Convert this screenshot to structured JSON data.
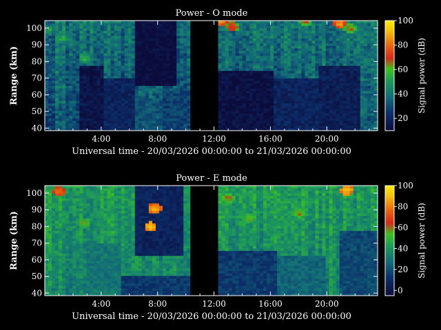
{
  "chart_data": [
    {
      "type": "heatmap",
      "title": "Power - O mode",
      "xlabel": "Universal time - 20/03/2026 00:00:00 to 21/03/2026 00:00:00",
      "ylabel": "Range (km)",
      "x_ticks": [
        "4:00",
        "8:00",
        "12:00",
        "16:00",
        "20:00"
      ],
      "x_tick_hours": [
        4,
        8,
        12,
        16,
        20
      ],
      "y_ticks": [
        "40",
        "50",
        "60",
        "70",
        "80",
        "90",
        "100"
      ],
      "y_tick_values": [
        40,
        50,
        60,
        70,
        80,
        90,
        100
      ],
      "xlim_hours": [
        0,
        23.6
      ],
      "ylim_km": [
        38.5,
        104.5
      ],
      "colorbar": {
        "label": "Signal power (dB)",
        "ticks": [
          "20",
          "40",
          "60",
          "80",
          "100"
        ],
        "tick_values": [
          20,
          40,
          60,
          80,
          100
        ],
        "range": [
          10,
          100
        ]
      },
      "data_gap_hours": [
        10.3,
        12.3
      ],
      "base_power_db": 35,
      "weak_blocks": [
        {
          "t0": 2.4,
          "t1": 4.3,
          "r0": 38.5,
          "r1": 77,
          "db": 14
        },
        {
          "t0": 4.3,
          "t1": 6.3,
          "r0": 38.5,
          "r1": 70,
          "db": 20
        },
        {
          "t0": 6.3,
          "t1": 8.3,
          "r0": 38.5,
          "r1": 58,
          "db": 32
        },
        {
          "t0": 6.3,
          "t1": 9.3,
          "r0": 66,
          "r1": 104.5,
          "db": 10
        },
        {
          "t0": 8.3,
          "t1": 10.3,
          "r0": 38.5,
          "r1": 62,
          "db": 28
        },
        {
          "t0": 12.3,
          "t1": 16.2,
          "r0": 38.5,
          "r1": 75,
          "db": 12
        },
        {
          "t0": 16.2,
          "t1": 19.5,
          "r0": 38.5,
          "r1": 70,
          "db": 20
        },
        {
          "t0": 19.5,
          "t1": 22.4,
          "r0": 38.5,
          "r1": 78,
          "db": 18
        }
      ],
      "strong_spots": [
        {
          "t": 0.3,
          "r": 99,
          "db": 55
        },
        {
          "t": 1.3,
          "r": 94,
          "db": 58
        },
        {
          "t": 2.8,
          "r": 82,
          "db": 60
        },
        {
          "t": 12.5,
          "r": 104,
          "db": 85
        },
        {
          "t": 13.3,
          "r": 101,
          "db": 78
        },
        {
          "t": 18.5,
          "r": 104,
          "db": 70
        },
        {
          "t": 20.9,
          "r": 103,
          "db": 90
        },
        {
          "t": 21.6,
          "r": 100,
          "db": 72
        }
      ]
    },
    {
      "type": "heatmap",
      "title": "Power - E mode",
      "xlabel": "Universal time - 20/03/2026 00:00:00 to 21/03/2026 00:00:00",
      "ylabel": "Range (km)",
      "x_ticks": [
        "4:00",
        "8:00",
        "12:00",
        "16:00",
        "20:00"
      ],
      "x_tick_hours": [
        4,
        8,
        12,
        16,
        20
      ],
      "y_ticks": [
        "40",
        "50",
        "60",
        "70",
        "80",
        "90",
        "100"
      ],
      "y_tick_values": [
        40,
        50,
        60,
        70,
        80,
        90,
        100
      ],
      "xlim_hours": [
        0,
        23.6
      ],
      "ylim_km": [
        38.5,
        104.5
      ],
      "colorbar": {
        "label": "Signal power (dB)",
        "ticks": [
          "0",
          "20",
          "40",
          "60",
          "80",
          "100"
        ],
        "tick_values": [
          0,
          20,
          40,
          60,
          80,
          100
        ],
        "range": [
          -5,
          100
        ]
      },
      "data_gap_hours": [
        10.3,
        12.3
      ],
      "base_power_db": 38,
      "weak_blocks": [
        {
          "t0": 3.0,
          "t1": 5.3,
          "r0": 38.5,
          "r1": 70,
          "db": 30
        },
        {
          "t0": 5.3,
          "t1": 10.3,
          "r0": 38.5,
          "r1": 50,
          "db": 14
        },
        {
          "t0": 6.3,
          "t1": 9.8,
          "r0": 62,
          "r1": 104.5,
          "db": 6
        },
        {
          "t0": 12.3,
          "t1": 16.5,
          "r0": 38.5,
          "r1": 65,
          "db": 14
        },
        {
          "t0": 16.5,
          "t1": 20.0,
          "r0": 38.5,
          "r1": 62,
          "db": 25
        },
        {
          "t0": 21.0,
          "t1": 23.6,
          "r0": 38.5,
          "r1": 78,
          "db": 18
        }
      ],
      "strong_spots": [
        {
          "t": 1.0,
          "r": 101,
          "db": 80
        },
        {
          "t": 2.8,
          "r": 82,
          "db": 62
        },
        {
          "t": 7.5,
          "r": 80,
          "db": 96
        },
        {
          "t": 7.8,
          "r": 91,
          "db": 92
        },
        {
          "t": 13.0,
          "r": 97,
          "db": 65
        },
        {
          "t": 14.5,
          "r": 85,
          "db": 60
        },
        {
          "t": 18.0,
          "r": 88,
          "db": 62
        },
        {
          "t": 21.4,
          "r": 102,
          "db": 96
        }
      ]
    }
  ]
}
